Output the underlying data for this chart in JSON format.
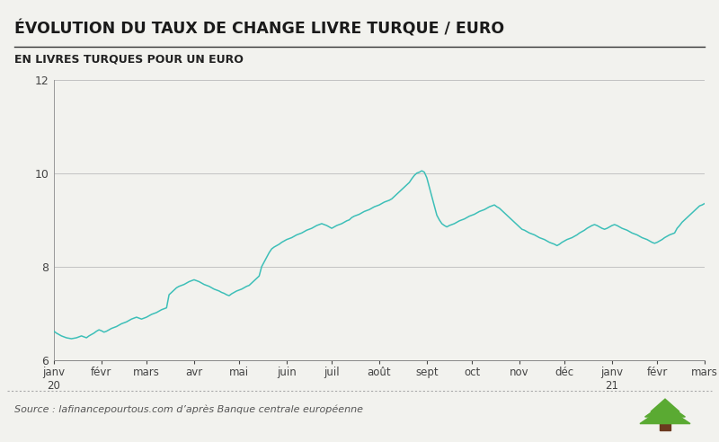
{
  "title": "ÉVOLUTION DU TAUX DE CHANGE LIVRE TURQUE / EURO",
  "subtitle": "EN LIVRES TURQUES POUR UN EURO",
  "source_text": "Source : lafinancepourtous.com d’après Banque centrale européenne",
  "line_color": "#3dbfb8",
  "background_color": "#f2f2ee",
  "ylim": [
    6,
    12
  ],
  "yticks": [
    6,
    8,
    10,
    12
  ],
  "x_labels": [
    "janv\n20",
    "févr",
    "mars",
    "avr",
    "mai",
    "juin",
    "juil",
    "août",
    "sept",
    "oct",
    "nov",
    "déc",
    "janv\n21",
    "févr",
    "mars"
  ],
  "data_y": [
    6.62,
    6.58,
    6.55,
    6.52,
    6.5,
    6.48,
    6.47,
    6.46,
    6.47,
    6.48,
    6.5,
    6.52,
    6.5,
    6.48,
    6.52,
    6.55,
    6.58,
    6.62,
    6.65,
    6.63,
    6.6,
    6.62,
    6.65,
    6.68,
    6.7,
    6.72,
    6.75,
    6.78,
    6.8,
    6.82,
    6.85,
    6.88,
    6.9,
    6.92,
    6.9,
    6.88,
    6.9,
    6.92,
    6.95,
    6.98,
    7.0,
    7.02,
    7.05,
    7.08,
    7.1,
    7.12,
    7.4,
    7.45,
    7.5,
    7.55,
    7.58,
    7.6,
    7.62,
    7.65,
    7.68,
    7.7,
    7.72,
    7.7,
    7.68,
    7.65,
    7.62,
    7.6,
    7.58,
    7.55,
    7.52,
    7.5,
    7.48,
    7.45,
    7.43,
    7.4,
    7.38,
    7.42,
    7.45,
    7.48,
    7.5,
    7.52,
    7.55,
    7.58,
    7.6,
    7.65,
    7.7,
    7.75,
    7.8,
    8.0,
    8.1,
    8.2,
    8.3,
    8.38,
    8.42,
    8.45,
    8.48,
    8.52,
    8.55,
    8.58,
    8.6,
    8.62,
    8.65,
    8.68,
    8.7,
    8.72,
    8.75,
    8.78,
    8.8,
    8.82,
    8.85,
    8.88,
    8.9,
    8.92,
    8.9,
    8.88,
    8.85,
    8.82,
    8.85,
    8.88,
    8.9,
    8.92,
    8.95,
    8.98,
    9.0,
    9.05,
    9.08,
    9.1,
    9.12,
    9.15,
    9.18,
    9.2,
    9.22,
    9.25,
    9.28,
    9.3,
    9.32,
    9.35,
    9.38,
    9.4,
    9.42,
    9.45,
    9.5,
    9.55,
    9.6,
    9.65,
    9.7,
    9.75,
    9.8,
    9.88,
    9.95,
    10.0,
    10.02,
    10.05,
    10.02,
    9.9,
    9.7,
    9.5,
    9.3,
    9.1,
    9.0,
    8.92,
    8.88,
    8.85,
    8.88,
    8.9,
    8.92,
    8.95,
    8.98,
    9.0,
    9.02,
    9.05,
    9.08,
    9.1,
    9.12,
    9.15,
    9.18,
    9.2,
    9.22,
    9.25,
    9.28,
    9.3,
    9.32,
    9.28,
    9.25,
    9.2,
    9.15,
    9.1,
    9.05,
    9.0,
    8.95,
    8.9,
    8.85,
    8.8,
    8.78,
    8.75,
    8.72,
    8.7,
    8.68,
    8.65,
    8.62,
    8.6,
    8.58,
    8.55,
    8.52,
    8.5,
    8.48,
    8.45,
    8.48,
    8.52,
    8.55,
    8.58,
    8.6,
    8.62,
    8.65,
    8.68,
    8.72,
    8.75,
    8.78,
    8.82,
    8.85,
    8.88,
    8.9,
    8.88,
    8.85,
    8.82,
    8.8,
    8.82,
    8.85,
    8.88,
    8.9,
    8.88,
    8.85,
    8.82,
    8.8,
    8.78,
    8.75,
    8.72,
    8.7,
    8.68,
    8.65,
    8.62,
    8.6,
    8.58,
    8.55,
    8.52,
    8.5,
    8.52,
    8.55,
    8.58,
    8.62,
    8.65,
    8.68,
    8.7,
    8.72,
    8.82,
    8.88,
    8.95,
    9.0,
    9.05,
    9.1,
    9.15,
    9.2,
    9.25,
    9.3,
    9.32,
    9.35
  ]
}
